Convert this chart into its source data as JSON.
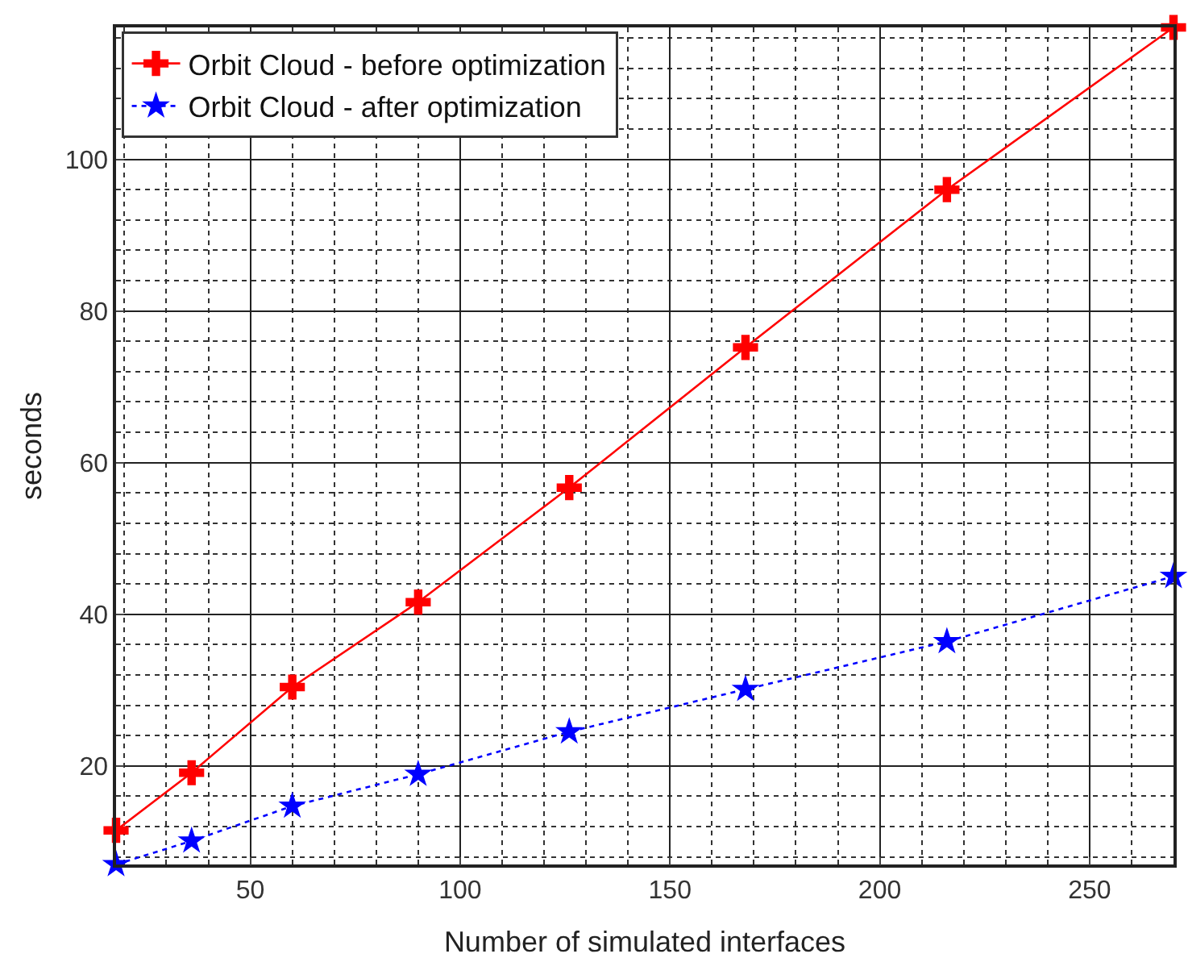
{
  "chart_data": {
    "type": "line",
    "xlabel": "Number of simulated interfaces",
    "ylabel": "seconds",
    "x": [
      18,
      36,
      60,
      90,
      126,
      168,
      216,
      270
    ],
    "series": [
      {
        "name": "Orbit Cloud - before optimization",
        "color": "#ff0000",
        "marker": "cross",
        "line_style": "solid",
        "values": [
          11.5,
          19.1,
          30.4,
          41.6,
          56.7,
          75.2,
          96,
          117.4
        ]
      },
      {
        "name": "Orbit Cloud - after optimization",
        "color": "#0000ff",
        "marker": "star",
        "line_style": "dotted",
        "values": [
          7.0,
          10.1,
          14.7,
          18.9,
          24.5,
          30.1,
          36.4,
          45.0
        ]
      }
    ],
    "xlim": [
      18,
      270
    ],
    "xticks": [
      50,
      100,
      150,
      200,
      250
    ],
    "ylim": [
      7,
      117.4
    ],
    "yticks": [
      20,
      40,
      60,
      80,
      100
    ],
    "grid": true,
    "legend": "top left"
  }
}
